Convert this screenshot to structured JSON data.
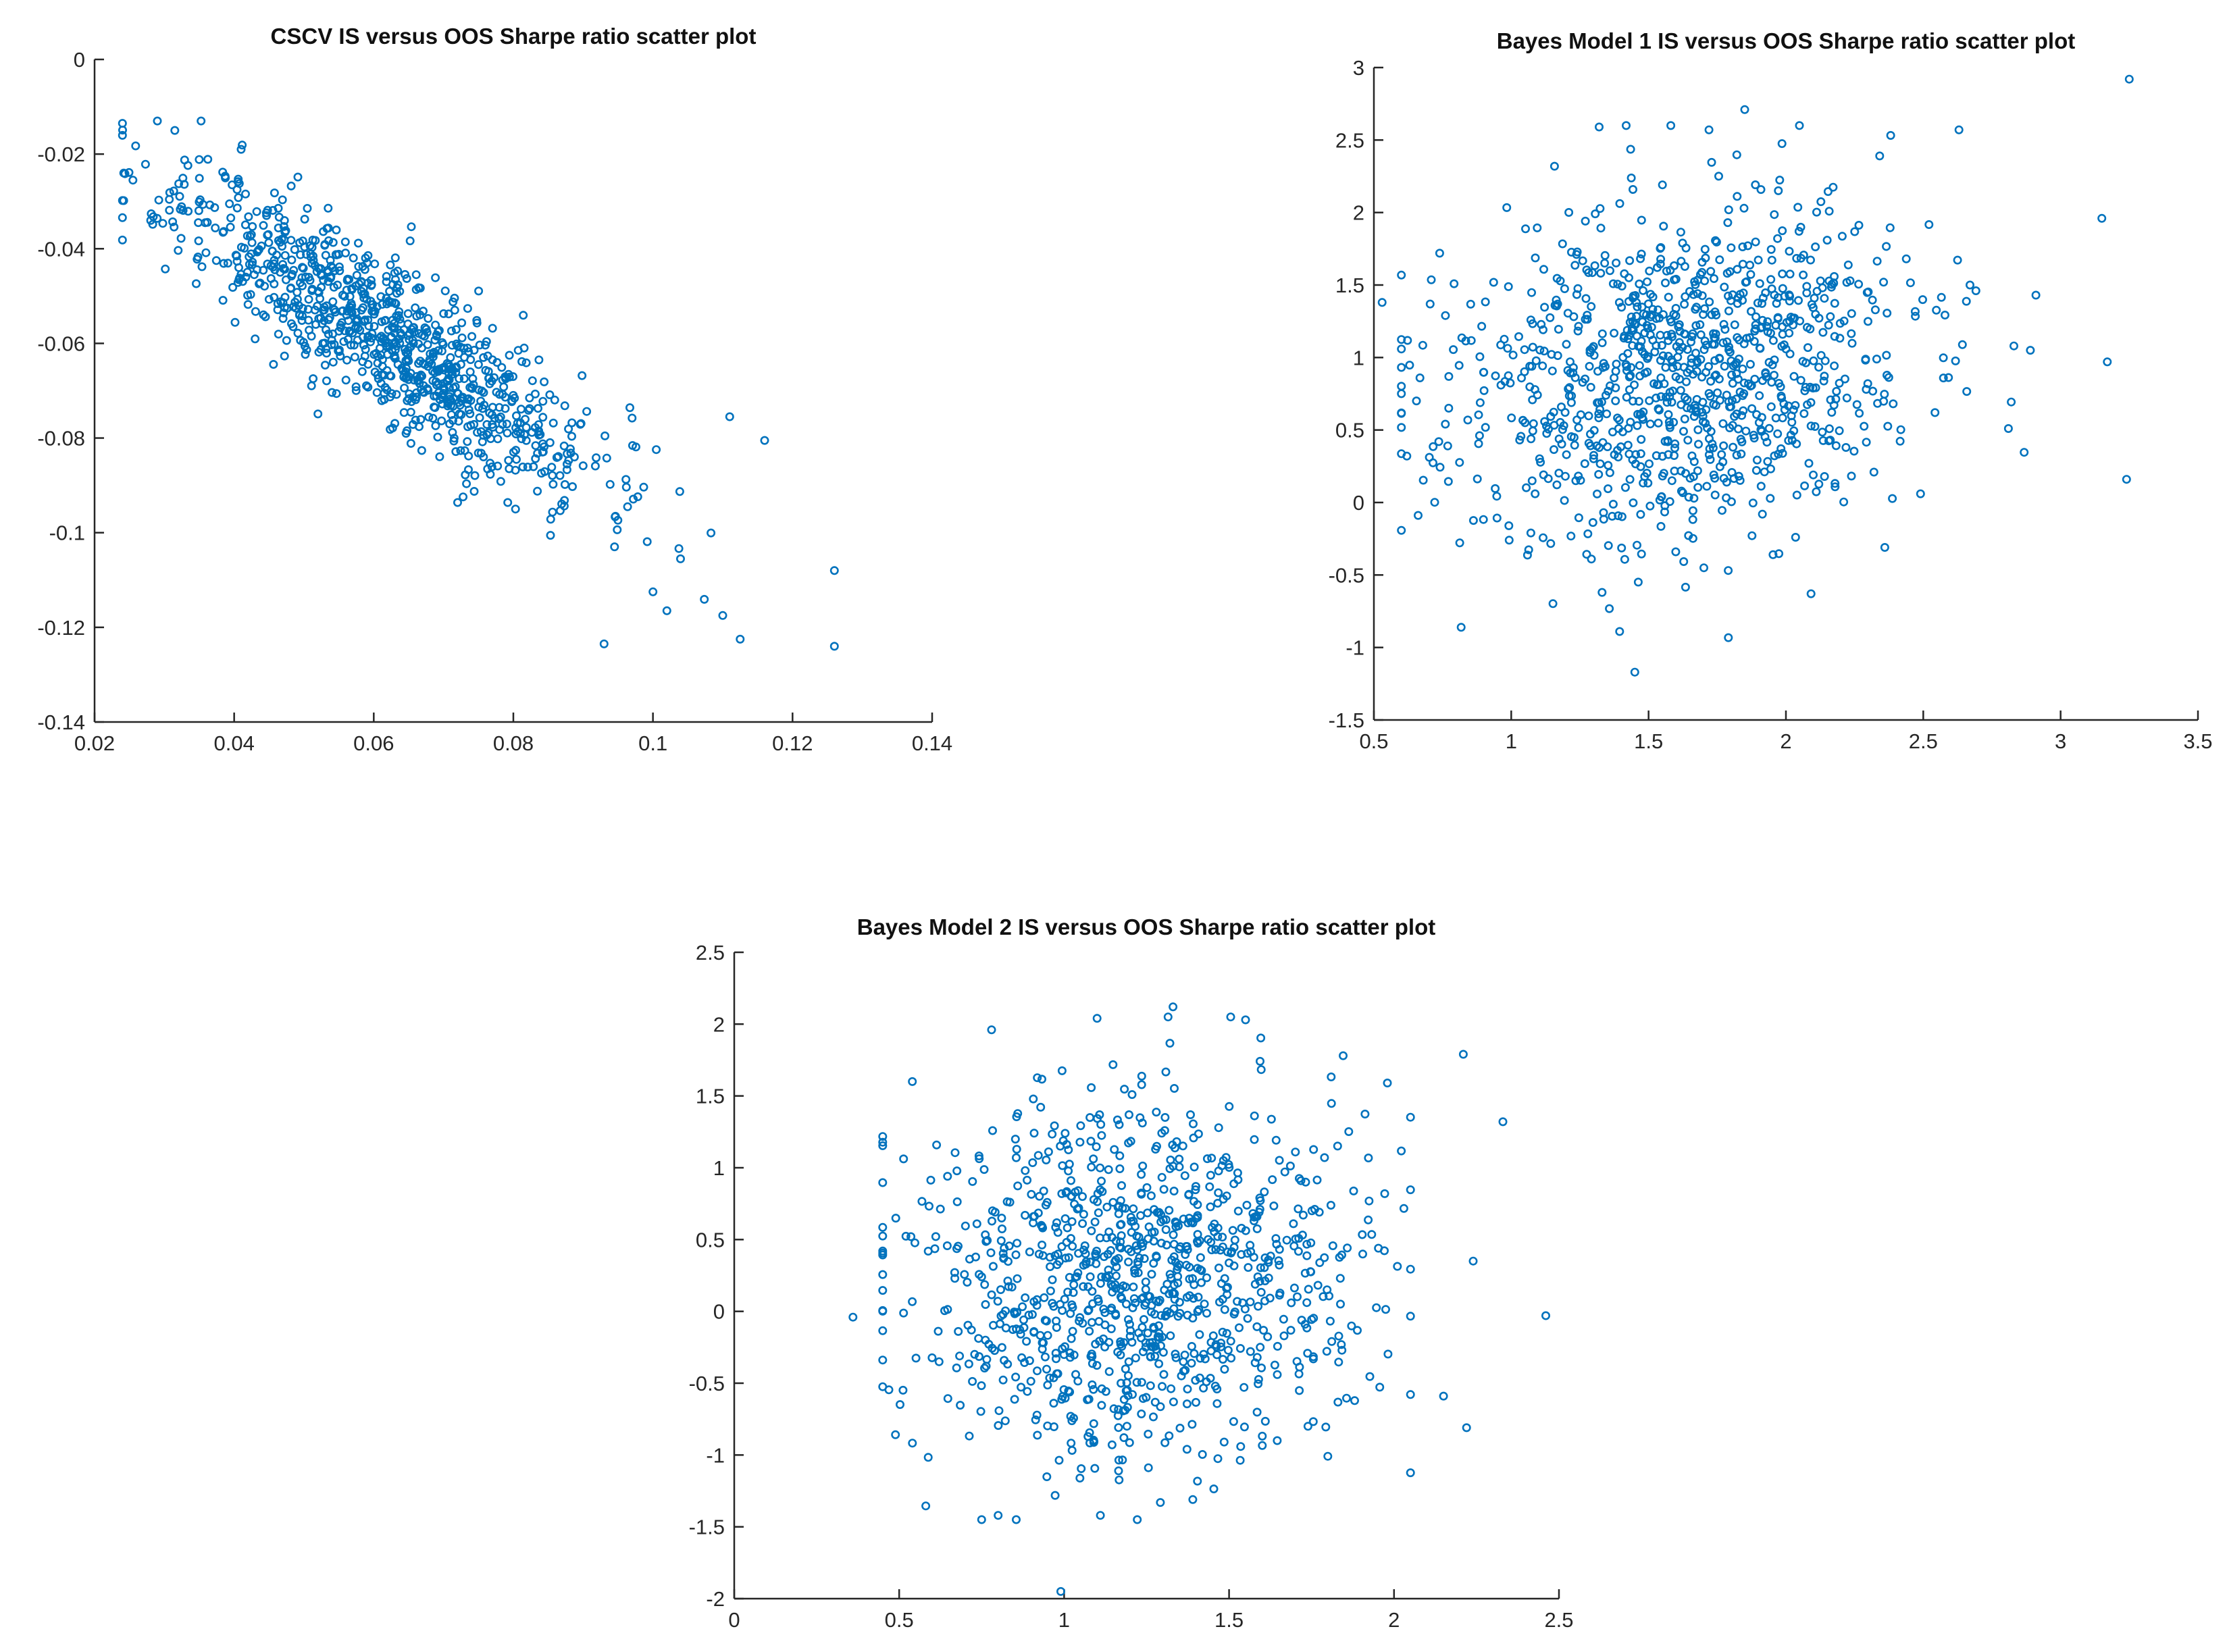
{
  "figure": {
    "background": "#ffffff",
    "marker_color": "#0072bd",
    "axis_color": "#262626"
  },
  "chart_data": [
    {
      "type": "scatter",
      "title": "CSCV IS versus OOS Sharpe ratio scatter plot",
      "xlabel": "",
      "ylabel": "",
      "xlim": [
        0.02,
        0.14
      ],
      "ylim": [
        -0.14,
        0
      ],
      "xticks": [
        0.02,
        0.04,
        0.06,
        0.08,
        0.1,
        0.12,
        0.14
      ],
      "xtick_labels": [
        "0.02",
        "0.04",
        "0.06",
        "0.08",
        "0.1",
        "0.12",
        "0.14"
      ],
      "yticks": [
        -0.14,
        -0.12,
        -0.1,
        -0.08,
        -0.06,
        -0.04,
        -0.02,
        0
      ],
      "ytick_labels": [
        "-0.14",
        "-0.12",
        "-0.1",
        "-0.08",
        "-0.06",
        "-0.04",
        "-0.02",
        "0"
      ],
      "marker": "circle-open",
      "series": [
        {
          "name": "CSCV",
          "generator": "normal-cloud",
          "n": 950,
          "x_mean": 0.062,
          "x_std": 0.015,
          "slope": -0.92,
          "intercept": -0.0015,
          "noise_std": 0.0085,
          "x_clip": [
            0.024,
            0.126
          ],
          "y_clip": [
            -0.124,
            -0.013
          ],
          "seed": 11,
          "extra_points": [
            [
              0.024,
              -0.0135
            ],
            [
              0.029,
              -0.013
            ],
            [
              0.0255,
              -0.0255
            ],
            [
              0.0315,
              -0.015
            ],
            [
              0.041,
              -0.019
            ],
            [
              0.116,
              -0.0805
            ],
            [
              0.111,
              -0.0755
            ],
            [
              0.126,
              -0.108
            ],
            [
              0.1125,
              -0.1225
            ],
            [
              0.093,
              -0.1235
            ],
            [
              0.102,
              -0.1165
            ],
            [
              0.1,
              -0.1125
            ],
            [
              0.11,
              -0.1175
            ]
          ]
        }
      ]
    },
    {
      "type": "scatter",
      "title": "Bayes Model 1 IS versus OOS Sharpe ratio scatter plot",
      "xlabel": "",
      "ylabel": "",
      "xlim": [
        0.5,
        3.5
      ],
      "ylim": [
        -1.5,
        3
      ],
      "xticks": [
        0.5,
        1,
        1.5,
        2,
        2.5,
        3,
        3.5
      ],
      "xtick_labels": [
        "0.5",
        "1",
        "1.5",
        "2",
        "2.5",
        "3",
        "3.5"
      ],
      "yticks": [
        -1.5,
        -1,
        -0.5,
        0,
        0.5,
        1,
        1.5,
        2,
        2.5,
        3
      ],
      "ytick_labels": [
        "-1.5",
        "-1",
        "-0.5",
        "0",
        "0.5",
        "1",
        "1.5",
        "2",
        "2.5",
        "3"
      ],
      "marker": "circle-open",
      "series": [
        {
          "name": "Bayes Model 1",
          "generator": "normal-cloud",
          "n": 1000,
          "x_mean": 1.6,
          "x_std": 0.42,
          "slope": 0.2,
          "intercept": 0.55,
          "noise_std": 0.58,
          "x_clip": [
            0.6,
            2.95
          ],
          "y_clip": [
            -1.15,
            2.6
          ],
          "seed": 23,
          "extra_points": [
            [
              3.25,
              2.92
            ],
            [
              3.15,
              1.96
            ],
            [
              3.17,
              0.97
            ],
            [
              3.24,
              0.16
            ],
            [
              0.53,
              1.38
            ],
            [
              0.62,
              0.32
            ],
            [
              1.45,
              -1.17
            ],
            [
              1.32,
              2.59
            ],
            [
              1.85,
              2.71
            ],
            [
              2.63,
              2.57
            ],
            [
              2.91,
              1.43
            ],
            [
              2.81,
              0.51
            ],
            [
              2.36,
              -0.31
            ],
            [
              2.49,
              0.06
            ],
            [
              2.89,
              1.05
            ],
            [
              2.83,
              1.08
            ],
            [
              1.72,
              2.57
            ]
          ]
        }
      ]
    },
    {
      "type": "scatter",
      "title": "Bayes Model 2 IS versus OOS Sharpe ratio scatter plot",
      "xlabel": "",
      "ylabel": "",
      "xlim": [
        0,
        2.5
      ],
      "ylim": [
        -2,
        2.5
      ],
      "xticks": [
        0,
        0.5,
        1,
        1.5,
        2,
        2.5
      ],
      "xtick_labels": [
        "0",
        "0.5",
        "1",
        "1.5",
        "2",
        "2.5"
      ],
      "yticks": [
        -2,
        -1.5,
        -1,
        -0.5,
        0,
        0.5,
        1,
        1.5,
        2,
        2.5
      ],
      "ytick_labels": [
        "-2",
        "-1.5",
        "-1",
        "-0.5",
        "0",
        "0.5",
        "1",
        "1.5",
        "2",
        "2.5"
      ],
      "marker": "circle-open",
      "series": [
        {
          "name": "Bayes Model 2",
          "generator": "normal-cloud",
          "n": 1000,
          "x_mean": 1.22,
          "x_std": 0.33,
          "slope": 0.08,
          "intercept": 0.12,
          "noise_std": 0.62,
          "x_clip": [
            0.45,
            2.05
          ],
          "y_clip": [
            -1.45,
            2.05
          ],
          "seed": 37,
          "extra_points": [
            [
              0.36,
              -0.04
            ],
            [
              0.99,
              -1.95
            ],
            [
              2.46,
              -0.03
            ],
            [
              2.33,
              1.32
            ],
            [
              2.21,
              1.79
            ],
            [
              2.24,
              0.35
            ],
            [
              2.15,
              -0.59
            ],
            [
              2.22,
              -0.81
            ],
            [
              1.33,
              2.12
            ],
            [
              1.1,
              2.04
            ],
            [
              0.78,
              1.96
            ],
            [
              0.54,
              1.6
            ],
            [
              1.55,
              2.03
            ],
            [
              1.39,
              -1.31
            ],
            [
              1.11,
              -1.42
            ],
            [
              0.8,
              -1.42
            ],
            [
              1.98,
              1.59
            ]
          ]
        }
      ]
    }
  ]
}
